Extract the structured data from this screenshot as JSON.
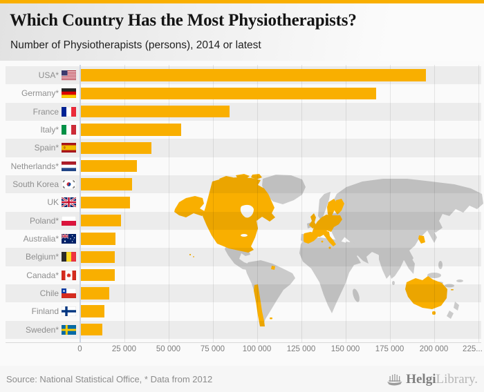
{
  "header": {
    "title": "Which Country Has the Most Physiotherapists?",
    "subtitle": "Number of Physiotherapists (persons), 2014 or latest"
  },
  "chart_data": {
    "type": "bar",
    "orientation": "horizontal",
    "title": "Which Country Has the Most Physiotherapists?",
    "subtitle": "Number of Physiotherapists (persons), 2014 or latest",
    "unit": "persons",
    "categories": [
      "USA*",
      "Germany*",
      "France",
      "Italy*",
      "Spain*",
      "Netherlands*",
      "South Korea",
      "UK",
      "Poland*",
      "Australia*",
      "Belgium*",
      "Canada*",
      "Chile",
      "Finland",
      "Sweden*"
    ],
    "values": [
      195000,
      167000,
      84000,
      57000,
      40000,
      32000,
      29000,
      28000,
      23000,
      19600,
      19400,
      19200,
      16000,
      13400,
      12300
    ],
    "flags": [
      "us",
      "de",
      "fr",
      "it",
      "es",
      "nl",
      "kr",
      "gb",
      "pl",
      "au",
      "be",
      "ca",
      "cl",
      "fi",
      "se"
    ],
    "xlim": [
      0,
      230000
    ],
    "x_ticks": [
      "0",
      "25 000",
      "50 000",
      "75 000",
      "100 000",
      "125 000",
      "150 000",
      "175 000",
      "200 000",
      "225..."
    ],
    "tick_interval": 25000,
    "grid": true,
    "legend": "none",
    "bar_color": "#F9AF00",
    "row_stripe": true,
    "background_map": {
      "base_color": "#CBCBCB",
      "highlight_color": "#F9AF00",
      "highlighted": [
        "USA",
        "Canada",
        "Chile",
        "France",
        "French Guiana",
        "Falkland Islands",
        "Spain",
        "UK",
        "Netherlands",
        "Belgium",
        "Germany",
        "Italy",
        "Poland",
        "Sweden",
        "Finland",
        "South Korea",
        "Australia",
        "New Caledonia"
      ]
    }
  },
  "footer": {
    "source": "Source: National Statistical Office, * Data from 2012",
    "brand_primary": "Helgi",
    "brand_secondary": "Library."
  },
  "theme": {
    "accent": "#F9AF00",
    "header_bg": "#e8e8e8",
    "chart_bg": "#fafafa",
    "label_color": "#8e8e8e",
    "axis_color": "#7c7c7c"
  }
}
